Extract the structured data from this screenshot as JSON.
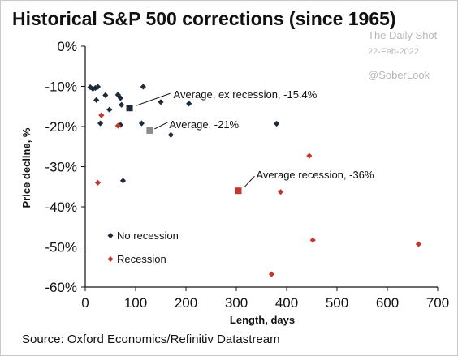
{
  "header": {
    "title": "Historical S&P 500 corrections (since 1965)"
  },
  "watermark": {
    "brand": "The Daily Shot",
    "date": "22-Feb-2022",
    "handle": "@SoberLook"
  },
  "source": "Source: Oxford Economics/Refinitiv Datastream",
  "colors": {
    "no_recession": "#1f2a3a",
    "recession": "#c0392b",
    "average_gray": "#8c8c8c",
    "axis": "#111111"
  },
  "chart_data": {
    "type": "scatter",
    "title": "Historical S&P 500 corrections (since 1965)",
    "xlabel": "Length, days",
    "ylabel": "Price decline, %",
    "xlim": [
      0,
      700
    ],
    "ylim": [
      -60,
      0
    ],
    "x_ticks": [
      0,
      100,
      200,
      300,
      400,
      500,
      600,
      700
    ],
    "x_tick_labels": [
      "0",
      "100",
      "200",
      "300",
      "400",
      "500",
      "600",
      "700"
    ],
    "y_ticks": [
      0,
      -10,
      -20,
      -30,
      -40,
      -50,
      -60
    ],
    "y_tick_labels": [
      "0%",
      "-10%",
      "-20%",
      "-30%",
      "-40%",
      "-50%",
      "-60%"
    ],
    "grid": false,
    "legend_position": "bottom-left",
    "series": [
      {
        "name": "No recession",
        "marker": "diamond",
        "color": "#1f2a3a",
        "points": [
          {
            "x": 10,
            "y": -10.2
          },
          {
            "x": 15,
            "y": -10.6
          },
          {
            "x": 20,
            "y": -10.4
          },
          {
            "x": 25,
            "y": -10.1
          },
          {
            "x": 22,
            "y": -13.4
          },
          {
            "x": 30,
            "y": -19.2
          },
          {
            "x": 40,
            "y": -12.2
          },
          {
            "x": 48,
            "y": -15.8
          },
          {
            "x": 65,
            "y": -12.1
          },
          {
            "x": 70,
            "y": -12.9
          },
          {
            "x": 70,
            "y": -19.6
          },
          {
            "x": 72,
            "y": -14.6
          },
          {
            "x": 75,
            "y": -33.5
          },
          {
            "x": 115,
            "y": -10.1
          },
          {
            "x": 112,
            "y": -19.2
          },
          {
            "x": 150,
            "y": -13.9
          },
          {
            "x": 170,
            "y": -22.1
          },
          {
            "x": 206,
            "y": -14.3
          },
          {
            "x": 380,
            "y": -19.3
          }
        ]
      },
      {
        "name": "Recession",
        "marker": "diamond",
        "color": "#c0392b",
        "points": [
          {
            "x": 25,
            "y": -34.0
          },
          {
            "x": 32,
            "y": -17.2
          },
          {
            "x": 65,
            "y": -19.8
          },
          {
            "x": 370,
            "y": -56.8
          },
          {
            "x": 388,
            "y": -36.3
          },
          {
            "x": 445,
            "y": -27.3
          },
          {
            "x": 452,
            "y": -48.3
          },
          {
            "x": 662,
            "y": -49.3
          }
        ]
      }
    ],
    "averages": [
      {
        "label": "Average, ex recession, -15.4%",
        "x": 88,
        "y": -15.4,
        "color": "#1f2a3a"
      },
      {
        "label": "Average, -21%",
        "x": 128,
        "y": -21.0,
        "color": "#8c8c8c"
      },
      {
        "label": "Average recession, -36%",
        "x": 304,
        "y": -36.0,
        "color": "#c0392b"
      }
    ]
  }
}
